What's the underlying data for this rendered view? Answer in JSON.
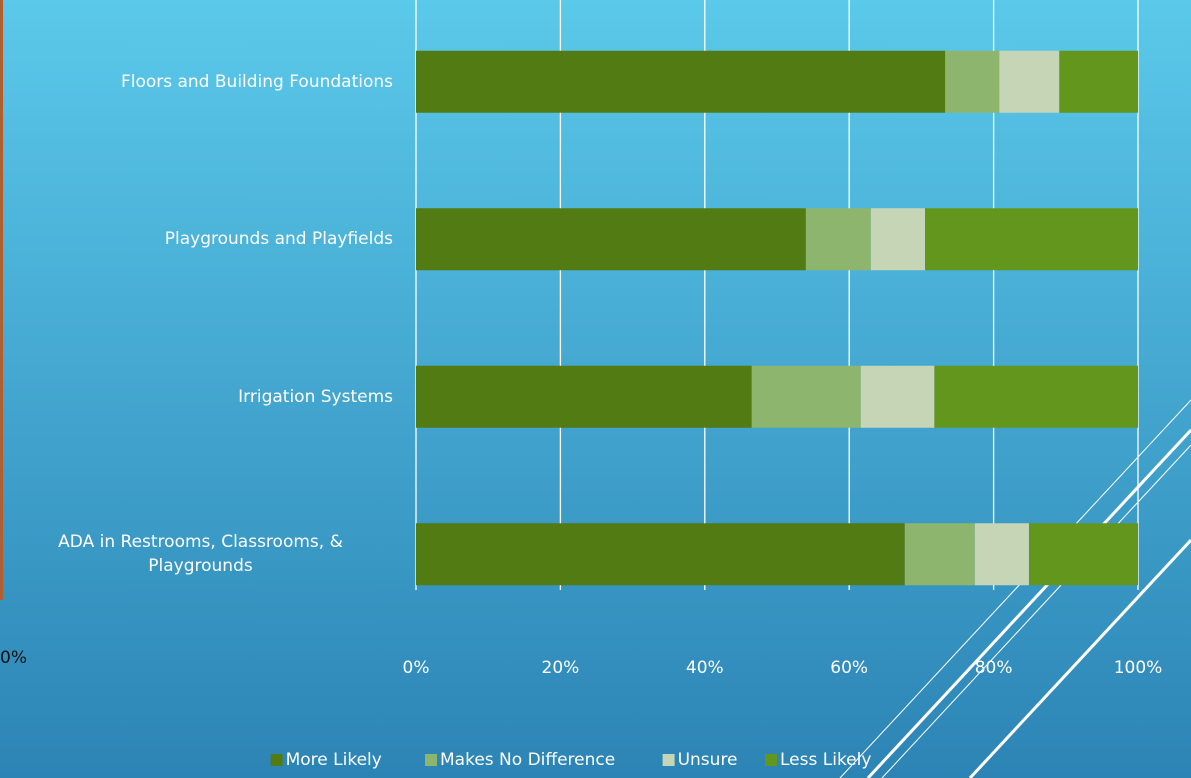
{
  "chart_data": {
    "type": "stacked_bar_horizontal",
    "categories": [
      "Floors and Building Foundations",
      "Playgrounds and Playfields",
      "Irrigation Systems",
      "ADA in Restrooms, Classrooms, & Playgrounds"
    ],
    "series": [
      {
        "name": "More Likely",
        "color": "#527b14",
        "values": [
          73.3,
          54.0,
          46.5,
          67.7
        ]
      },
      {
        "name": "Makes No Difference",
        "color": "#8db56e",
        "values": [
          7.5,
          9.0,
          15.1,
          9.7
        ]
      },
      {
        "name": "Unsure",
        "color": "#c6d5b6",
        "values": [
          8.3,
          7.5,
          10.2,
          7.5
        ]
      },
      {
        "name": "Less Likely",
        "color": "#63961c",
        "values": [
          10.9,
          29.5,
          28.2,
          15.1
        ]
      }
    ],
    "xlim": [
      0,
      100
    ],
    "xticks": [
      {
        "value": 0,
        "label": "0%"
      },
      {
        "value": 20,
        "label": "20%"
      },
      {
        "value": 40,
        "label": "40%"
      },
      {
        "value": 60,
        "label": "60%"
      },
      {
        "value": 80,
        "label": "80%"
      },
      {
        "value": 100,
        "label": "100%"
      }
    ],
    "grid": true,
    "legend": "bottom"
  },
  "background_fragment": {
    "tick_label": "0%"
  }
}
